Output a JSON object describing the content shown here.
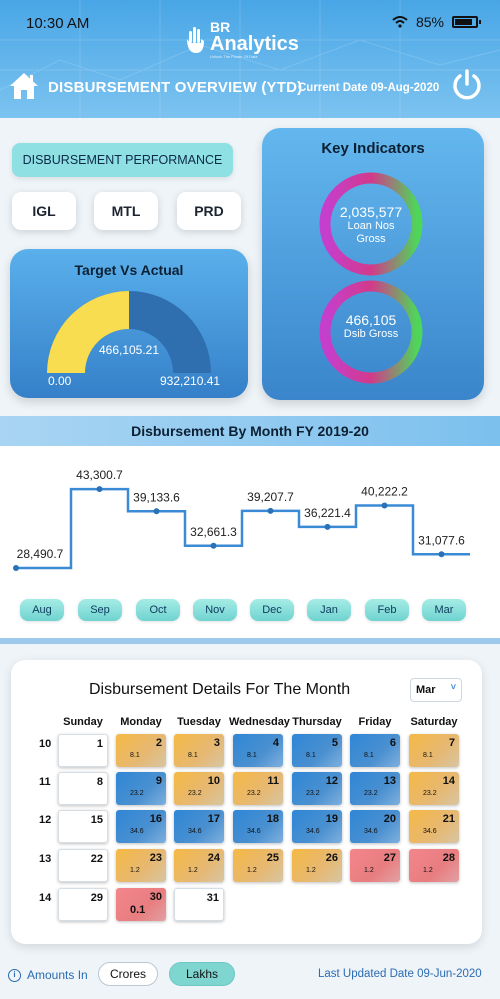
{
  "status_bar": {
    "time": "10:30 AM",
    "battery": "85%"
  },
  "logo": {
    "br": "BR",
    "name": "Analytics",
    "tagline": "Unlock The Power Of Data"
  },
  "header": {
    "title": "DISBURSEMENT OVERVIEW (YTD)",
    "current_date": "Current Date 09-Aug-2020"
  },
  "performance": {
    "label": "DISBURSEMENT PERFORMANCE",
    "buttons": [
      "IGL",
      "MTL",
      "PRD"
    ]
  },
  "target_vs_actual": {
    "title": "Target Vs Actual",
    "actual": "466,105.21",
    "min": "0.00",
    "max": "932,210.41",
    "fill_fraction": 0.5,
    "colors": {
      "fill": "#f7dd4f",
      "track": "#2f6fb0"
    }
  },
  "key_indicators": {
    "title": "Key Indicators",
    "rings": [
      {
        "value": "2,035,577",
        "label_line1": "Loan Nos",
        "label_line2": "Gross"
      },
      {
        "value": "466,105",
        "label_line1": "Dsib Gross",
        "label_line2": ""
      }
    ],
    "colors": {
      "ring_left": "#c53fcf",
      "ring_right": "#4ed65a"
    }
  },
  "month_chart": {
    "title": "Disbursement By Month  FY 2019-20",
    "line_color": "#3a8ad6"
  },
  "chart_data": {
    "type": "line",
    "title": "Disbursement By Month  FY 2019-20",
    "categories": [
      "Aug",
      "Sep",
      "Oct",
      "Nov",
      "Dec",
      "Jan",
      "Feb",
      "Mar"
    ],
    "values": [
      28490.7,
      43300.7,
      39133.6,
      32661.3,
      39207.7,
      36221.4,
      40222.2,
      31077.6
    ],
    "value_labels": [
      "28,490.7",
      "43,300.7",
      "39,133.6",
      "32,661.3",
      "39,207.7",
      "36,221.4",
      "40,222.2",
      "31,077.6"
    ],
    "step": true,
    "xlabel": "",
    "ylabel": "",
    "ylim": [
      27000,
      45000
    ],
    "grid": false
  },
  "calendar": {
    "title": "Disbursement Details For The Month",
    "selected_month": "Mar",
    "weekdays": [
      "Sunday",
      "Monday",
      "Tuesday",
      "Wednesday",
      "Thursday",
      "Friday",
      "Saturday"
    ],
    "weeks": [
      {
        "week": "10",
        "days": [
          {
            "col": 0,
            "day": "1",
            "value": "",
            "color": "white"
          },
          {
            "col": 1,
            "day": "2",
            "value": "8.1",
            "color": "orange"
          },
          {
            "col": 2,
            "day": "3",
            "value": "8.1",
            "color": "orange"
          },
          {
            "col": 3,
            "day": "4",
            "value": "8.1",
            "color": "blue"
          },
          {
            "col": 4,
            "day": "5",
            "value": "8.1",
            "color": "blue"
          },
          {
            "col": 5,
            "day": "6",
            "value": "8.1",
            "color": "blue"
          },
          {
            "col": 6,
            "day": "7",
            "value": "8.1",
            "color": "orange"
          }
        ]
      },
      {
        "week": "11",
        "days": [
          {
            "col": 0,
            "day": "8",
            "value": "",
            "color": "white"
          },
          {
            "col": 1,
            "day": "9",
            "value": "23.2",
            "color": "blue"
          },
          {
            "col": 2,
            "day": "10",
            "value": "23.2",
            "color": "orange"
          },
          {
            "col": 3,
            "day": "11",
            "value": "23.2",
            "color": "orange"
          },
          {
            "col": 4,
            "day": "12",
            "value": "23.2",
            "color": "blue"
          },
          {
            "col": 5,
            "day": "13",
            "value": "23.2",
            "color": "blue"
          },
          {
            "col": 6,
            "day": "14",
            "value": "23.2",
            "color": "orange"
          }
        ]
      },
      {
        "week": "12",
        "days": [
          {
            "col": 0,
            "day": "15",
            "value": "",
            "color": "white"
          },
          {
            "col": 1,
            "day": "16",
            "value": "34.6",
            "color": "blue"
          },
          {
            "col": 2,
            "day": "17",
            "value": "34.6",
            "color": "blue"
          },
          {
            "col": 3,
            "day": "18",
            "value": "34.6",
            "color": "blue"
          },
          {
            "col": 4,
            "day": "19",
            "value": "34.6",
            "color": "blue"
          },
          {
            "col": 5,
            "day": "20",
            "value": "34.6",
            "color": "blue"
          },
          {
            "col": 6,
            "day": "21",
            "value": "34.6",
            "color": "orange"
          }
        ]
      },
      {
        "week": "13",
        "days": [
          {
            "col": 0,
            "day": "22",
            "value": "",
            "color": "white"
          },
          {
            "col": 1,
            "day": "23",
            "value": "1.2",
            "color": "orange"
          },
          {
            "col": 2,
            "day": "24",
            "value": "1.2",
            "color": "orange"
          },
          {
            "col": 3,
            "day": "25",
            "value": "1.2",
            "color": "orange"
          },
          {
            "col": 4,
            "day": "26",
            "value": "1.2",
            "color": "orange"
          },
          {
            "col": 5,
            "day": "27",
            "value": "1.2",
            "color": "red"
          },
          {
            "col": 6,
            "day": "28",
            "value": "1.2",
            "color": "red"
          }
        ]
      },
      {
        "week": "14",
        "days": [
          {
            "col": 0,
            "day": "29",
            "value": "",
            "color": "white"
          },
          {
            "col": 1,
            "day": "30",
            "value": "0.1",
            "color": "red",
            "big": true
          },
          {
            "col": 2,
            "day": "31",
            "value": "",
            "color": "white"
          }
        ]
      }
    ]
  },
  "footer": {
    "amounts_in": "Amounts In",
    "crores": "Crores",
    "lakhs": "Lakhs",
    "last_updated": "Last Updated Date 09-Jun-2020"
  }
}
